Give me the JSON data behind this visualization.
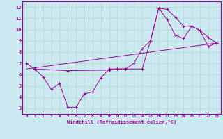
{
  "xlabel": "Windchill (Refroidissement éolien,°C)",
  "bg_color": "#cce8f0",
  "line_color": "#990099",
  "grid_color": "#aaddcc",
  "xlim": [
    -0.5,
    23.5
  ],
  "ylim": [
    2.5,
    12.5
  ],
  "xticks": [
    0,
    1,
    2,
    3,
    4,
    5,
    6,
    7,
    8,
    9,
    10,
    11,
    12,
    13,
    14,
    15,
    16,
    17,
    18,
    19,
    20,
    21,
    22,
    23
  ],
  "yticks": [
    3,
    4,
    5,
    6,
    7,
    8,
    9,
    10,
    11,
    12
  ],
  "line1_x": [
    0,
    1,
    2,
    3,
    4,
    5,
    6,
    7,
    8,
    9,
    10,
    11,
    12,
    13,
    14,
    15,
    16,
    17,
    18,
    19,
    20,
    21,
    22,
    23
  ],
  "line1_y": [
    7.0,
    6.5,
    5.8,
    4.7,
    5.2,
    3.1,
    3.1,
    4.3,
    4.45,
    5.7,
    6.5,
    6.5,
    6.5,
    7.0,
    8.3,
    9.0,
    11.9,
    11.8,
    11.1,
    10.3,
    10.3,
    9.9,
    9.3,
    8.8
  ],
  "line2_x": [
    0,
    23
  ],
  "line2_y": [
    6.5,
    8.8
  ],
  "line3_x": [
    1,
    5,
    10,
    11,
    14,
    15,
    16,
    17,
    18,
    19,
    20,
    21,
    22,
    23
  ],
  "line3_y": [
    6.5,
    6.35,
    6.4,
    6.5,
    6.5,
    9.0,
    11.9,
    10.9,
    9.5,
    9.2,
    10.3,
    9.9,
    8.5,
    8.8
  ]
}
